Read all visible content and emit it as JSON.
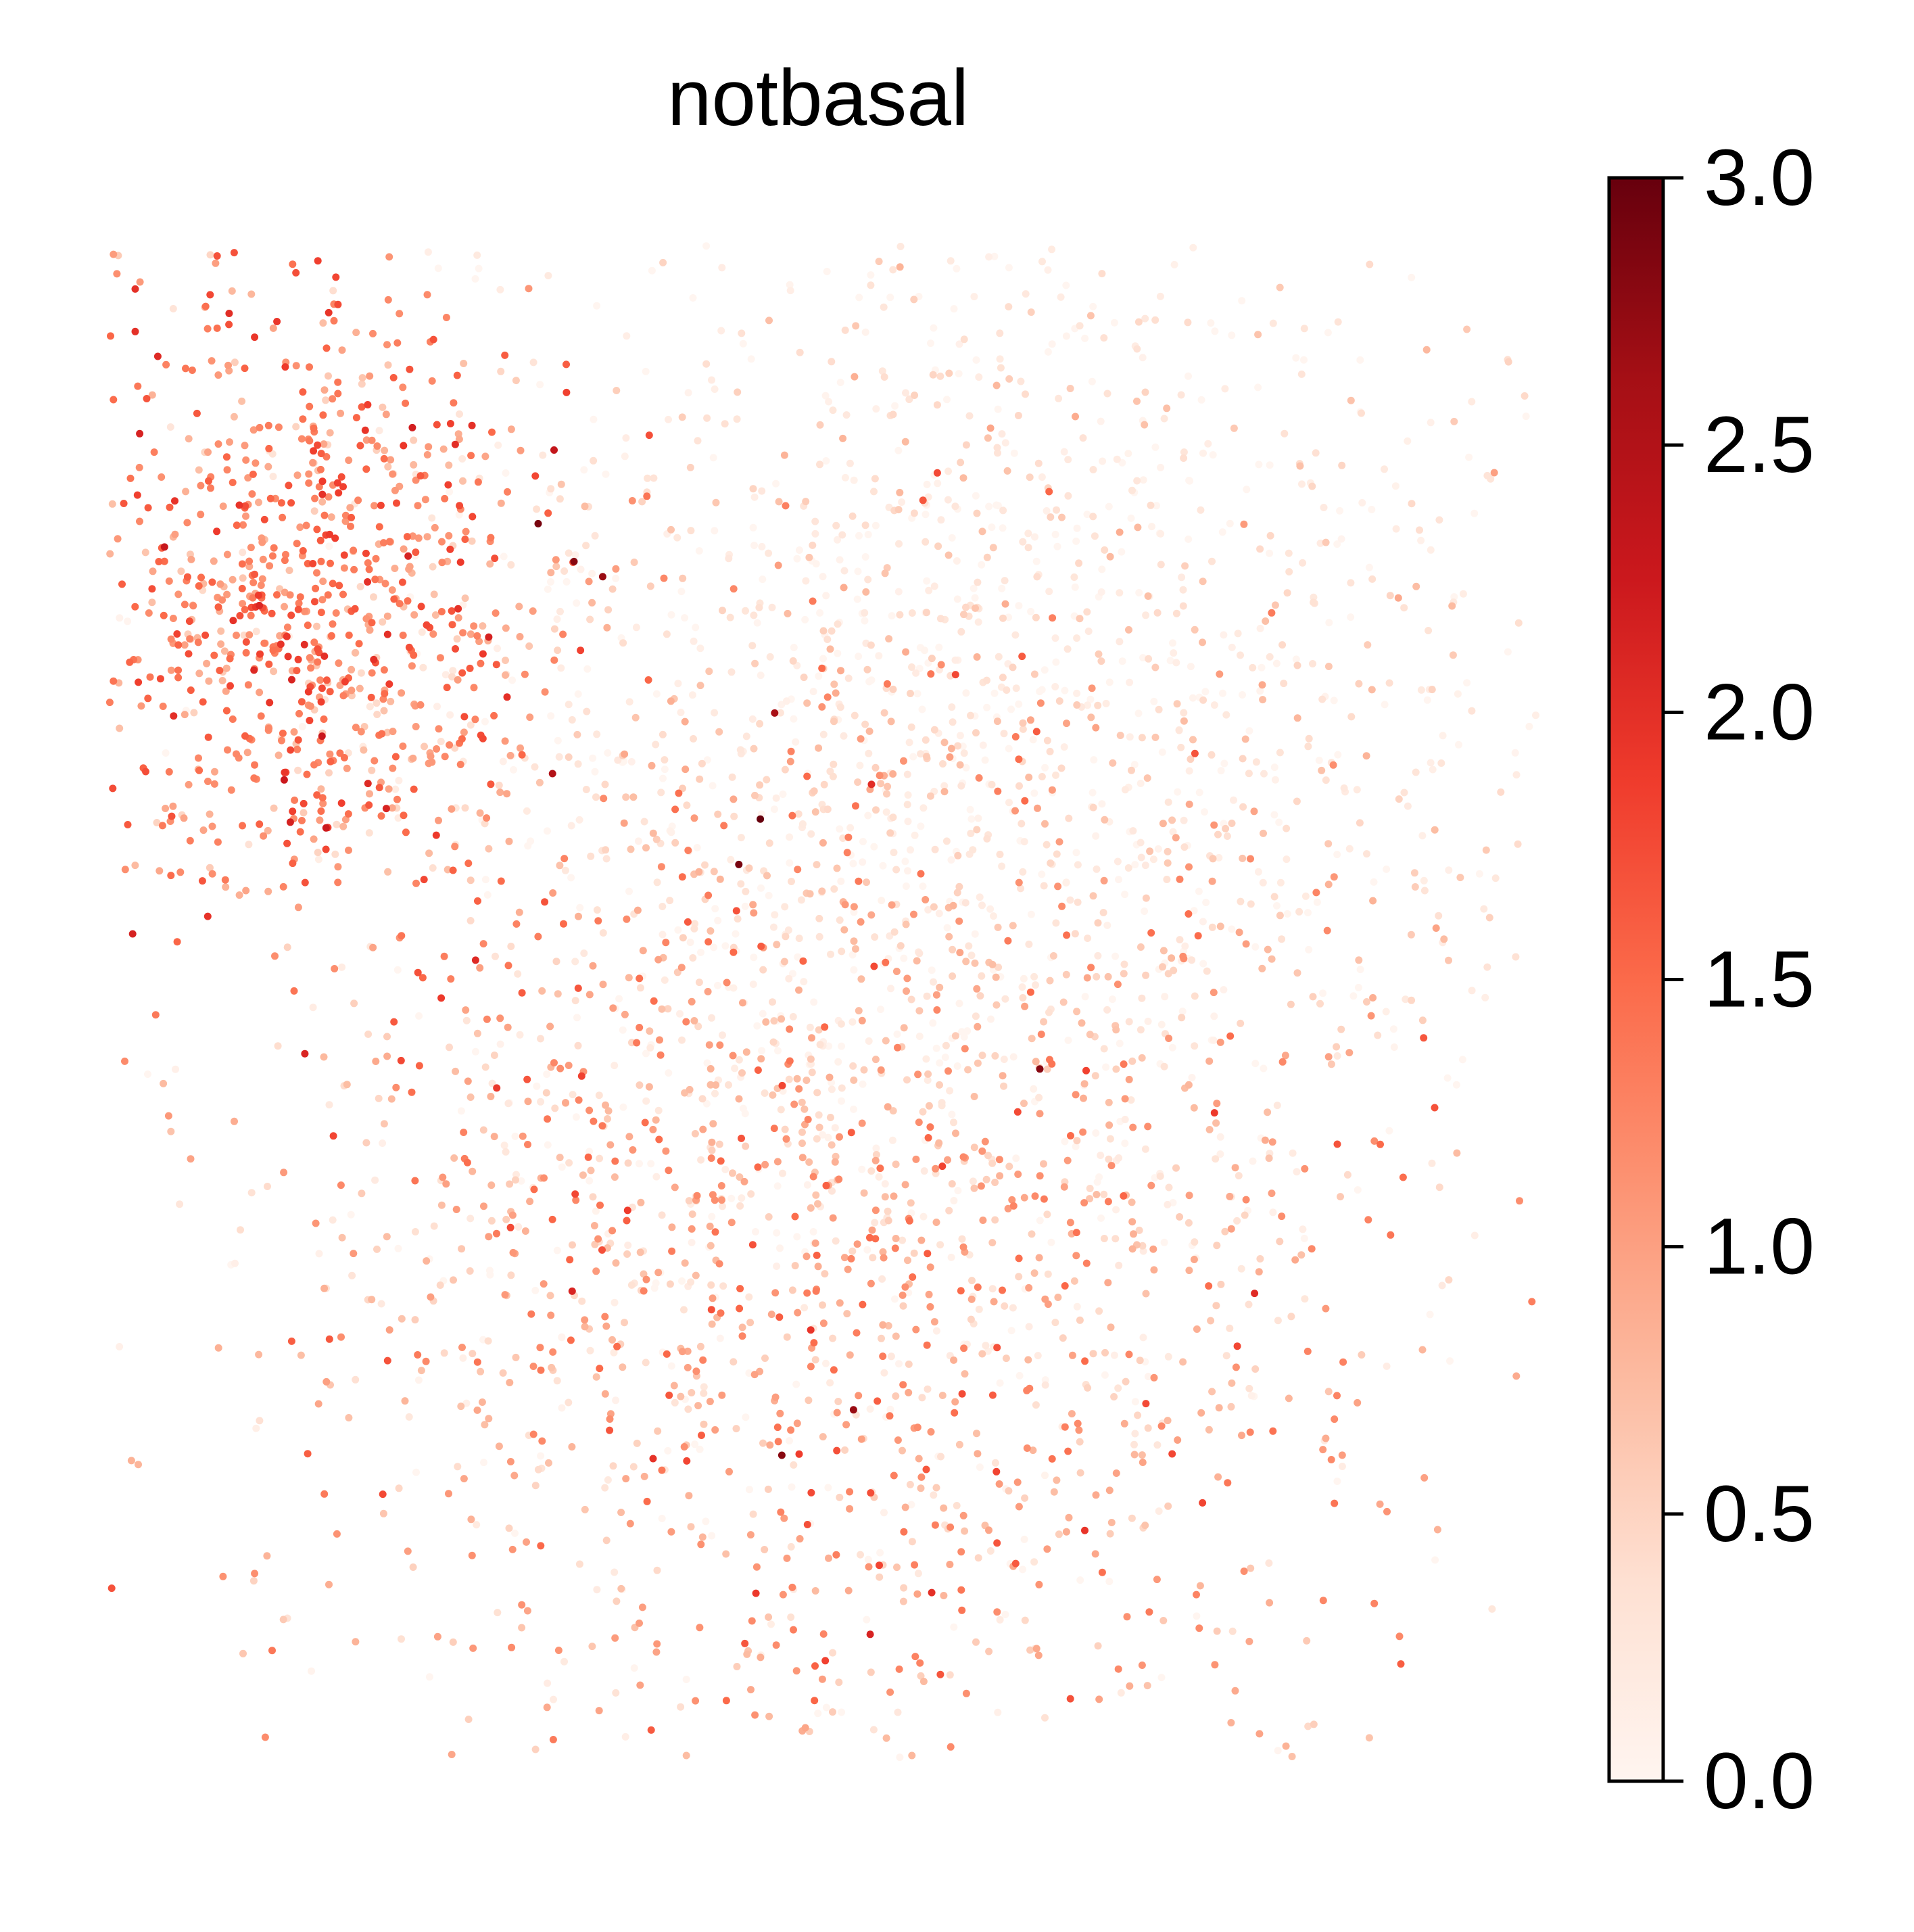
{
  "chart_data": {
    "type": "scatter",
    "title": "notbasal",
    "xlabel": "",
    "ylabel": "",
    "grid": false,
    "axes_visible": false,
    "colormap": "Reds",
    "colormap_stops": [
      "#fff5f0",
      "#fee0d2",
      "#fcbba1",
      "#fc9272",
      "#fb6a4a",
      "#ef3b2c",
      "#cb181d",
      "#a50f15",
      "#67000d"
    ],
    "colorbar": {
      "range": [
        0.0,
        3.0
      ],
      "ticks": [
        0.0,
        0.5,
        1.0,
        1.5,
        2.0,
        2.5,
        3.0
      ],
      "tick_labels": [
        "0.0",
        "0.5",
        "1.0",
        "1.5",
        "2.0",
        "2.5",
        "3.0"
      ],
      "placement": "right"
    },
    "clusters": [
      {
        "description": "left cluster, mostly elevated values",
        "center": [
          0.14,
          0.24
        ],
        "spread": [
          0.085,
          0.1
        ],
        "count": 900,
        "value_mean": 1.25,
        "value_sd": 0.45
      },
      {
        "description": "upper-right region, mostly low values",
        "center": [
          0.62,
          0.3
        ],
        "spread": [
          0.2,
          0.2
        ],
        "count": 1600,
        "value_mean": 0.18,
        "value_sd": 0.3
      },
      {
        "description": "lower-middle region, moderate values",
        "center": [
          0.5,
          0.65
        ],
        "spread": [
          0.2,
          0.2
        ],
        "count": 1800,
        "value_mean": 0.75,
        "value_sd": 0.5
      }
    ],
    "outliers": [
      {
        "x": 0.3,
        "y": 0.185,
        "value": 2.9
      },
      {
        "x": 0.325,
        "y": 0.21,
        "value": 2.8
      },
      {
        "x": 0.345,
        "y": 0.22,
        "value": 2.7
      },
      {
        "x": 0.455,
        "y": 0.38,
        "value": 3.0
      },
      {
        "x": 0.44,
        "y": 0.41,
        "value": 2.9
      },
      {
        "x": 0.465,
        "y": 0.31,
        "value": 2.6
      },
      {
        "x": 0.31,
        "y": 0.35,
        "value": 2.5
      },
      {
        "x": 0.47,
        "y": 0.8,
        "value": 2.8
      },
      {
        "x": 0.52,
        "y": 0.77,
        "value": 2.7
      },
      {
        "x": 0.65,
        "y": 0.545,
        "value": 2.8
      }
    ]
  }
}
